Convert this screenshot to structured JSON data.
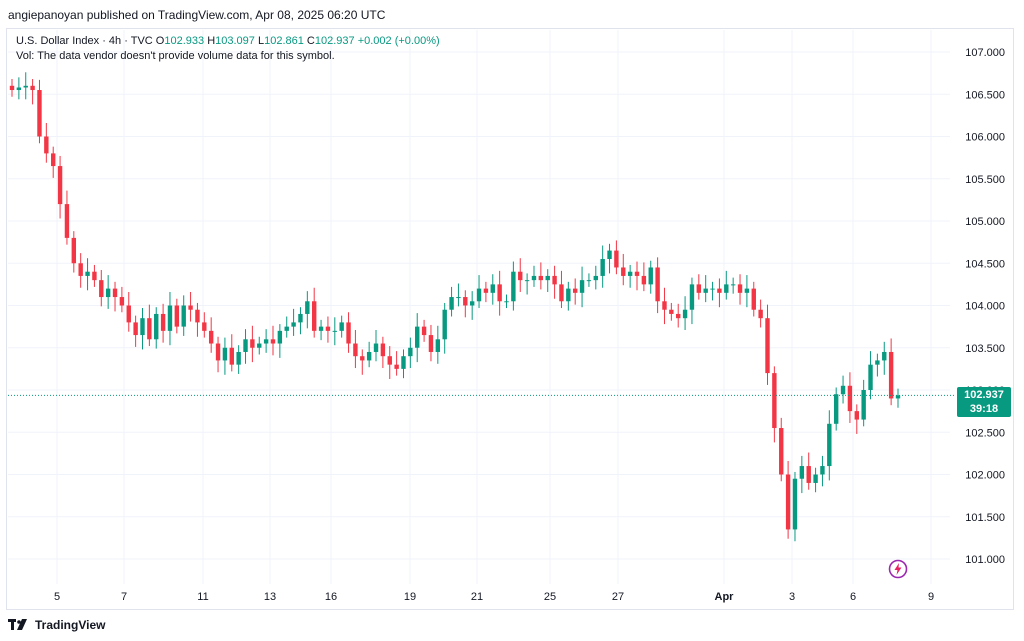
{
  "header": {
    "published": "angiepanoyan published on TradingView.com, Apr 08, 2025 06:20 UTC"
  },
  "legend": {
    "symbol": "U.S. Dollar Index · 4h · TVC",
    "o_label": "O",
    "o": "102.933",
    "h_label": "H",
    "h": "103.097",
    "l_label": "L",
    "l": "102.861",
    "c_label": "C",
    "c": "102.937",
    "change": "+0.002 (+0.00%)",
    "vol": "Vol: The data vendor doesn't provide volume data for this symbol."
  },
  "price_tag": {
    "price": "102.937",
    "countdown": "39:18"
  },
  "footer": {
    "brand": "TradingView"
  },
  "colors": {
    "up": "#089981",
    "down": "#f23645",
    "grid": "#f0f3fa",
    "axis_text": "#131722"
  },
  "chart_data": {
    "type": "candlestick",
    "y_ticks": [
      "107.000",
      "106.500",
      "106.000",
      "105.500",
      "105.000",
      "104.500",
      "104.000",
      "103.500",
      "103.000",
      "102.500",
      "102.000",
      "101.500",
      "101.000"
    ],
    "y_tick_values": [
      107.0,
      106.5,
      106.0,
      105.5,
      105.0,
      104.5,
      104.0,
      103.5,
      103.0,
      102.5,
      102.0,
      101.5,
      101.0
    ],
    "ylim": [
      100.6,
      107.5
    ],
    "x_ticks": [
      "5",
      "7",
      "11",
      "13",
      "16",
      "19",
      "21",
      "25",
      "27",
      "Apr",
      "3",
      "6",
      "9"
    ],
    "last_price": 102.937,
    "candles_close": [
      106.55,
      106.58,
      106.6,
      106.55,
      106.0,
      105.8,
      105.65,
      105.2,
      104.8,
      104.5,
      104.35,
      104.4,
      104.3,
      104.1,
      104.2,
      104.1,
      104.0,
      103.8,
      103.65,
      103.85,
      103.6,
      103.9,
      103.7,
      104.0,
      103.75,
      104.0,
      103.95,
      103.8,
      103.7,
      103.55,
      103.35,
      103.5,
      103.3,
      103.45,
      103.6,
      103.5,
      103.55,
      103.6,
      103.55,
      103.7,
      103.75,
      103.8,
      103.9,
      104.05,
      103.7,
      103.75,
      103.7,
      103.7,
      103.8,
      103.55,
      103.4,
      103.35,
      103.45,
      103.55,
      103.4,
      103.3,
      103.25,
      103.4,
      103.5,
      103.75,
      103.65,
      103.45,
      103.6,
      103.95,
      104.1,
      104.1,
      104.0,
      104.05,
      104.2,
      104.15,
      104.25,
      104.05,
      104.05,
      104.4,
      104.3,
      104.3,
      104.35,
      104.3,
      104.35,
      104.25,
      104.05,
      104.2,
      104.15,
      104.3,
      104.3,
      104.35,
      104.55,
      104.65,
      104.45,
      104.35,
      104.4,
      104.35,
      104.25,
      104.45,
      104.05,
      103.95,
      103.9,
      103.85,
      103.95,
      104.25,
      104.15,
      104.2,
      104.2,
      104.15,
      104.25,
      104.25,
      104.15,
      104.2,
      103.95,
      103.85,
      103.2,
      102.55,
      102.0,
      101.35,
      101.95,
      102.1,
      101.9,
      102.0,
      102.1,
      102.6,
      102.95,
      103.05,
      102.75,
      102.65,
      103.0,
      103.3,
      103.35,
      103.45,
      102.9,
      102.937
    ]
  }
}
